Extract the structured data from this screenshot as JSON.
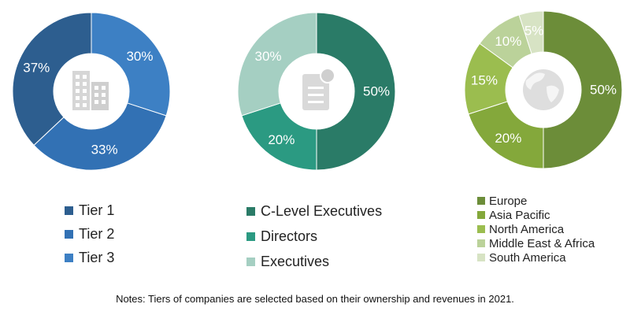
{
  "chart_data": [
    {
      "type": "pie",
      "donut": true,
      "center_icon": "office-building-icon",
      "categories": [
        "Tier 1",
        "Tier 2",
        "Tier 3"
      ],
      "values": [
        37,
        33,
        30
      ],
      "data_labels": [
        "37%",
        "33%",
        "30%"
      ],
      "colors": [
        "#2d5e8f",
        "#3271b4",
        "#3d80c4"
      ],
      "legend": "bottom"
    },
    {
      "type": "pie",
      "donut": true,
      "center_icon": "document-icon",
      "categories": [
        "C-Level Executives",
        "Directors",
        "Executives"
      ],
      "values": [
        50,
        20,
        30
      ],
      "data_labels": [
        "50%",
        "20%",
        "30%"
      ],
      "colors": [
        "#2a7b67",
        "#2b9a82",
        "#a5cfc2"
      ],
      "legend": "bottom"
    },
    {
      "type": "pie",
      "donut": true,
      "center_icon": "globe-icon",
      "categories": [
        "Europe",
        "Asia Pacific",
        "North America",
        "Middle East & Africa",
        "South America"
      ],
      "values": [
        50,
        20,
        15,
        10,
        5
      ],
      "data_labels": [
        "50%",
        "20%",
        "15%",
        "10%",
        "5%"
      ],
      "colors": [
        "#6c8d39",
        "#84a83b",
        "#9bbd4f",
        "#bbd29a",
        "#d7e3c4"
      ],
      "legend": "bottom"
    }
  ],
  "notes": "Notes: Tiers of companies are selected based on their ownership and revenues in 2021."
}
